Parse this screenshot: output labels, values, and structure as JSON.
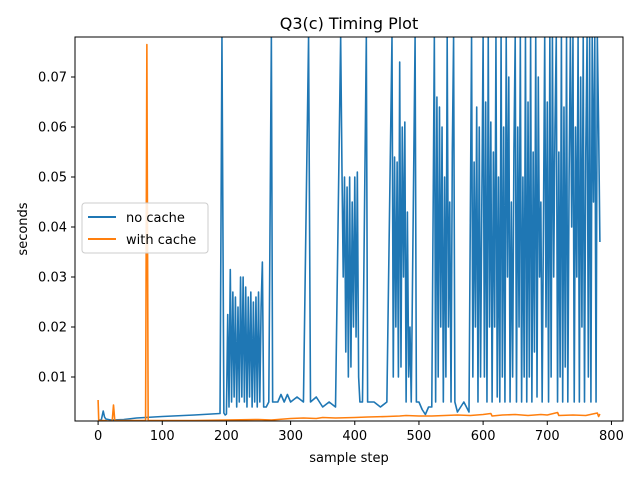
{
  "chart_data": {
    "type": "line",
    "title": "Q3(c) Timing Plot",
    "xlabel": "sample step",
    "ylabel": "seconds",
    "xlim": [
      -36,
      818
    ],
    "ylim": [
      0.0012,
      0.078
    ],
    "xticks": [
      0,
      100,
      200,
      300,
      400,
      500,
      600,
      700,
      800
    ],
    "xtick_labels": [
      "0",
      "100",
      "200",
      "300",
      "400",
      "500",
      "600",
      "700",
      "800"
    ],
    "yticks": [
      0.01,
      0.02,
      0.03,
      0.04,
      0.05,
      0.06,
      0.07
    ],
    "ytick_labels": [
      "0.01",
      "0.02",
      "0.03",
      "0.04",
      "0.05",
      "0.06",
      "0.07"
    ],
    "grid": false,
    "legend_position": "center-left",
    "series": [
      {
        "name": "no cache",
        "color": "#1f77b4",
        "points": [
          [
            0,
            0.0014
          ],
          [
            5,
            0.0014
          ],
          [
            8,
            0.0032
          ],
          [
            10,
            0.002
          ],
          [
            12,
            0.0016
          ],
          [
            20,
            0.0014
          ],
          [
            40,
            0.0015
          ],
          [
            60,
            0.0018
          ],
          [
            100,
            0.0021
          ],
          [
            150,
            0.0024
          ],
          [
            190,
            0.0027
          ],
          [
            193,
            0.078
          ],
          [
            196,
            0.0028
          ],
          [
            198,
            0.0024
          ],
          [
            200,
            0.0026
          ],
          [
            202,
            0.0225
          ],
          [
            204,
            0.004
          ],
          [
            206,
            0.0315
          ],
          [
            208,
            0.005
          ],
          [
            210,
            0.027
          ],
          [
            212,
            0.006
          ],
          [
            214,
            0.026
          ],
          [
            216,
            0.004
          ],
          [
            218,
            0.024
          ],
          [
            220,
            0.005
          ],
          [
            222,
            0.03
          ],
          [
            224,
            0.006
          ],
          [
            226,
            0.03
          ],
          [
            228,
            0.005
          ],
          [
            230,
            0.028
          ],
          [
            232,
            0.004
          ],
          [
            234,
            0.026
          ],
          [
            236,
            0.006
          ],
          [
            238,
            0.027
          ],
          [
            240,
            0.004
          ],
          [
            242,
            0.025
          ],
          [
            244,
            0.005
          ],
          [
            246,
            0.026
          ],
          [
            248,
            0.004
          ],
          [
            250,
            0.027
          ],
          [
            252,
            0.005
          ],
          [
            254,
            0.024
          ],
          [
            256,
            0.033
          ],
          [
            258,
            0.004
          ],
          [
            262,
            0.004
          ],
          [
            266,
            0.005
          ],
          [
            270,
            0.078
          ],
          [
            272,
            0.005
          ],
          [
            280,
            0.005
          ],
          [
            285,
            0.0065
          ],
          [
            290,
            0.005
          ],
          [
            295,
            0.0065
          ],
          [
            300,
            0.005
          ],
          [
            310,
            0.006
          ],
          [
            320,
            0.005
          ],
          [
            328,
            0.078
          ],
          [
            331,
            0.005
          ],
          [
            340,
            0.006
          ],
          [
            350,
            0.004
          ],
          [
            360,
            0.005
          ],
          [
            370,
            0.004
          ],
          [
            378,
            0.078
          ],
          [
            380,
            0.052
          ],
          [
            382,
            0.03
          ],
          [
            384,
            0.05
          ],
          [
            386,
            0.015
          ],
          [
            388,
            0.048
          ],
          [
            390,
            0.01
          ],
          [
            392,
            0.05
          ],
          [
            394,
            0.012
          ],
          [
            396,
            0.045
          ],
          [
            398,
            0.02
          ],
          [
            400,
            0.05
          ],
          [
            402,
            0.018
          ],
          [
            404,
            0.051
          ],
          [
            406,
            0.01
          ],
          [
            408,
            0.005
          ],
          [
            412,
            0.005
          ],
          [
            418,
            0.078
          ],
          [
            420,
            0.005
          ],
          [
            430,
            0.005
          ],
          [
            440,
            0.004
          ],
          [
            450,
            0.005
          ],
          [
            458,
            0.078
          ],
          [
            460,
            0.01
          ],
          [
            462,
            0.054
          ],
          [
            464,
            0.02
          ],
          [
            466,
            0.053
          ],
          [
            468,
            0.01
          ],
          [
            470,
            0.073
          ],
          [
            472,
            0.012
          ],
          [
            474,
            0.06
          ],
          [
            476,
            0.03
          ],
          [
            478,
            0.061
          ],
          [
            480,
            0.005
          ],
          [
            482,
            0.043
          ],
          [
            484,
            0.01
          ],
          [
            486,
            0.02
          ],
          [
            488,
            0.005
          ],
          [
            494,
            0.078
          ],
          [
            496,
            0.005
          ],
          [
            500,
            0.005
          ],
          [
            505,
            0.0035
          ],
          [
            510,
            0.0025
          ],
          [
            515,
            0.004
          ],
          [
            520,
            0.004
          ],
          [
            524,
            0.078
          ],
          [
            526,
            0.005
          ],
          [
            528,
            0.066
          ],
          [
            530,
            0.01
          ],
          [
            532,
            0.064
          ],
          [
            534,
            0.02
          ],
          [
            536,
            0.06
          ],
          [
            538,
            0.005
          ],
          [
            540,
            0.05
          ],
          [
            542,
            0.01
          ],
          [
            544,
            0.078
          ],
          [
            546,
            0.02
          ],
          [
            548,
            0.045
          ],
          [
            550,
            0.005
          ],
          [
            552,
            0.055
          ],
          [
            554,
            0.078
          ],
          [
            556,
            0.005
          ],
          [
            560,
            0.003
          ],
          [
            565,
            0.004
          ],
          [
            570,
            0.005
          ],
          [
            578,
            0.003
          ],
          [
            582,
            0.078
          ],
          [
            584,
            0.01
          ],
          [
            586,
            0.053
          ],
          [
            588,
            0.02
          ],
          [
            590,
            0.064
          ],
          [
            592,
            0.005
          ],
          [
            594,
            0.06
          ],
          [
            596,
            0.01
          ],
          [
            598,
            0.045
          ],
          [
            600,
            0.078
          ],
          [
            602,
            0.01
          ],
          [
            604,
            0.065
          ],
          [
            606,
            0.005
          ],
          [
            608,
            0.078
          ],
          [
            610,
            0.02
          ],
          [
            612,
            0.061
          ],
          [
            614,
            0.005
          ],
          [
            616,
            0.055
          ],
          [
            618,
            0.02
          ],
          [
            620,
            0.078
          ],
          [
            622,
            0.006
          ],
          [
            624,
            0.05
          ],
          [
            626,
            0.005
          ],
          [
            628,
            0.078
          ],
          [
            630,
            0.01
          ],
          [
            632,
            0.06
          ],
          [
            634,
            0.005
          ],
          [
            636,
            0.078
          ],
          [
            638,
            0.03
          ],
          [
            640,
            0.07
          ],
          [
            642,
            0.005
          ],
          [
            644,
            0.045
          ],
          [
            646,
            0.01
          ],
          [
            648,
            0.055
          ],
          [
            650,
            0.078
          ],
          [
            652,
            0.005
          ],
          [
            654,
            0.06
          ],
          [
            656,
            0.02
          ],
          [
            658,
            0.078
          ],
          [
            660,
            0.005
          ],
          [
            662,
            0.05
          ],
          [
            664,
            0.01
          ],
          [
            666,
            0.078
          ],
          [
            668,
            0.005
          ],
          [
            670,
            0.065
          ],
          [
            672,
            0.01
          ],
          [
            674,
            0.078
          ],
          [
            676,
            0.005
          ],
          [
            678,
            0.055
          ],
          [
            680,
            0.015
          ],
          [
            682,
            0.078
          ],
          [
            684,
            0.006
          ],
          [
            686,
            0.07
          ],
          [
            688,
            0.03
          ],
          [
            690,
            0.045
          ],
          [
            692,
            0.005
          ],
          [
            694,
            0.04
          ],
          [
            696,
            0.078
          ],
          [
            698,
            0.02
          ],
          [
            700,
            0.065
          ],
          [
            702,
            0.005
          ],
          [
            704,
            0.078
          ],
          [
            706,
            0.01
          ],
          [
            708,
            0.078
          ],
          [
            710,
            0.03
          ],
          [
            712,
            0.06
          ],
          [
            714,
            0.078
          ],
          [
            716,
            0.005
          ],
          [
            718,
            0.055
          ],
          [
            720,
            0.01
          ],
          [
            722,
            0.078
          ],
          [
            724,
            0.005
          ],
          [
            726,
            0.064
          ],
          [
            728,
            0.012
          ],
          [
            730,
            0.078
          ],
          [
            732,
            0.005
          ],
          [
            734,
            0.05
          ],
          [
            736,
            0.078
          ],
          [
            738,
            0.04
          ],
          [
            740,
            0.078
          ],
          [
            742,
            0.005
          ],
          [
            744,
            0.06
          ],
          [
            746,
            0.03
          ],
          [
            748,
            0.078
          ],
          [
            750,
            0.005
          ],
          [
            752,
            0.07
          ],
          [
            754,
            0.02
          ],
          [
            756,
            0.078
          ],
          [
            758,
            0.005
          ],
          [
            760,
            0.055
          ],
          [
            762,
            0.078
          ],
          [
            764,
            0.01
          ],
          [
            766,
            0.078
          ],
          [
            768,
            0.005
          ],
          [
            770,
            0.078
          ],
          [
            772,
            0.045
          ],
          [
            774,
            0.078
          ],
          [
            776,
            0.005
          ],
          [
            778,
            0.078
          ],
          [
            780,
            0.06
          ],
          [
            782,
            0.037
          ]
        ]
      },
      {
        "name": "with cache",
        "color": "#ff7f0e",
        "points": [
          [
            0,
            0.0054
          ],
          [
            1,
            0.0012
          ],
          [
            5,
            0.0013
          ],
          [
            10,
            0.0013
          ],
          [
            15,
            0.0012
          ],
          [
            22,
            0.0012
          ],
          [
            24,
            0.0044
          ],
          [
            26,
            0.0013
          ],
          [
            40,
            0.0013
          ],
          [
            60,
            0.0013
          ],
          [
            74,
            0.0013
          ],
          [
            76,
            0.0765
          ],
          [
            78,
            0.0013
          ],
          [
            100,
            0.0013
          ],
          [
            150,
            0.0013
          ],
          [
            200,
            0.0014
          ],
          [
            250,
            0.0015
          ],
          [
            270,
            0.0014
          ],
          [
            290,
            0.0016
          ],
          [
            300,
            0.0017
          ],
          [
            320,
            0.0018
          ],
          [
            340,
            0.0017
          ],
          [
            350,
            0.0019
          ],
          [
            370,
            0.0018
          ],
          [
            400,
            0.0019
          ],
          [
            420,
            0.002
          ],
          [
            450,
            0.0021
          ],
          [
            470,
            0.0022
          ],
          [
            480,
            0.0023
          ],
          [
            500,
            0.0022
          ],
          [
            520,
            0.0022
          ],
          [
            540,
            0.0023
          ],
          [
            560,
            0.0024
          ],
          [
            580,
            0.0023
          ],
          [
            600,
            0.0025
          ],
          [
            612,
            0.0027
          ],
          [
            614,
            0.0022
          ],
          [
            630,
            0.0024
          ],
          [
            650,
            0.0025
          ],
          [
            670,
            0.0023
          ],
          [
            690,
            0.0025
          ],
          [
            700,
            0.0024
          ],
          [
            716,
            0.0029
          ],
          [
            718,
            0.0023
          ],
          [
            740,
            0.0024
          ],
          [
            760,
            0.0023
          ],
          [
            778,
            0.0028
          ],
          [
            780,
            0.0021
          ],
          [
            782,
            0.0026
          ]
        ]
      }
    ]
  }
}
